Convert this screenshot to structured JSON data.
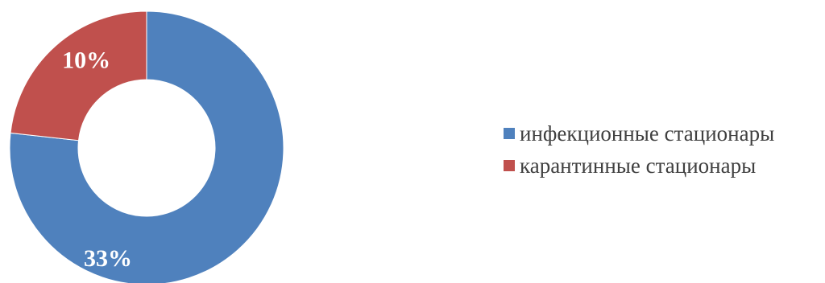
{
  "chart_data": {
    "type": "pie",
    "variant": "donut",
    "categories": [
      "инфекционные стационары",
      "карантинные стационары"
    ],
    "values": [
      33,
      10
    ],
    "labels": [
      "33%",
      "10%"
    ],
    "colors": [
      "#4F81BD",
      "#C0504D"
    ],
    "legend": {
      "position": "right",
      "entries": [
        "инфекционные стационары",
        "карантинные стационары"
      ]
    }
  }
}
